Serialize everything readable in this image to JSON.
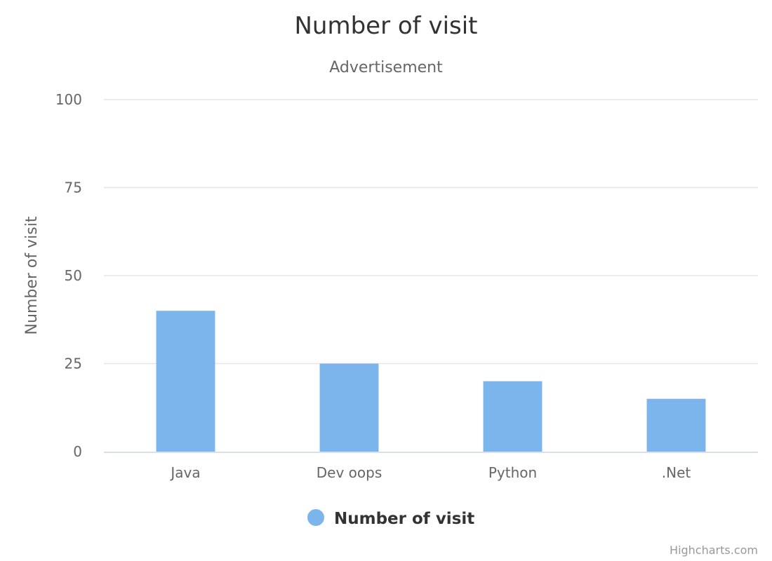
{
  "chart_data": {
    "type": "bar",
    "title": "Number of visit",
    "subtitle": "Advertisement",
    "xlabel": "",
    "ylabel": "Number of visit",
    "categories": [
      "Java",
      "Dev oops",
      "Python",
      ".Net"
    ],
    "series": [
      {
        "name": "Number of visit",
        "color": "#7cb5ec",
        "values": [
          40,
          25,
          20,
          15
        ]
      }
    ],
    "ylim": [
      0,
      100
    ],
    "yticks": [
      0,
      25,
      50,
      75,
      100
    ],
    "grid": true,
    "legend_position": "bottom-center",
    "credits": "Highcharts.com"
  }
}
